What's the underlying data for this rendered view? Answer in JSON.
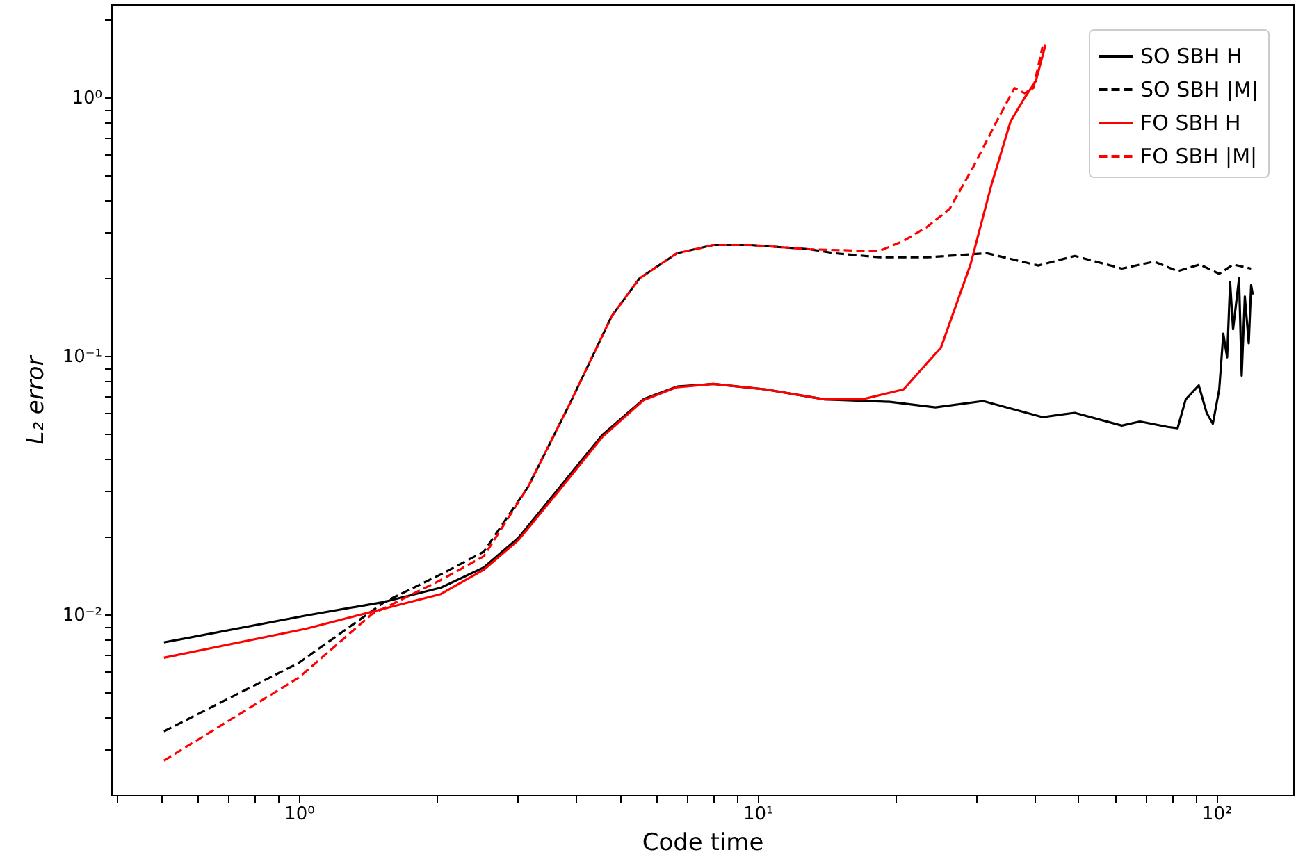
{
  "chart_data": {
    "type": "line",
    "xlabel": "Code time",
    "ylabel": "L₂ error",
    "log": "xy",
    "grid": false,
    "legend": "top right",
    "xlim": [
      0.39,
      147
    ],
    "ylim": [
      0.002,
      2.3
    ],
    "xticks": [
      {
        "value": 0.4,
        "label": null
      },
      {
        "value": 0.5,
        "label": null
      },
      {
        "value": 0.6,
        "label": null
      },
      {
        "value": 0.7,
        "label": null
      },
      {
        "value": 0.8,
        "label": null
      },
      {
        "value": 0.9,
        "label": null
      },
      {
        "value": 1,
        "label": "10⁰"
      },
      {
        "value": 2,
        "label": null
      },
      {
        "value": 3,
        "label": null
      },
      {
        "value": 4,
        "label": null
      },
      {
        "value": 5,
        "label": null
      },
      {
        "value": 6,
        "label": null
      },
      {
        "value": 7,
        "label": null
      },
      {
        "value": 8,
        "label": null
      },
      {
        "value": 9,
        "label": null
      },
      {
        "value": 10,
        "label": "10¹"
      },
      {
        "value": 20,
        "label": null
      },
      {
        "value": 30,
        "label": null
      },
      {
        "value": 40,
        "label": null
      },
      {
        "value": 50,
        "label": null
      },
      {
        "value": 60,
        "label": null
      },
      {
        "value": 70,
        "label": null
      },
      {
        "value": 80,
        "label": null
      },
      {
        "value": 90,
        "label": null
      },
      {
        "value": 100,
        "label": "10²"
      }
    ],
    "yticks": [
      {
        "value": 0.003,
        "label": null
      },
      {
        "value": 0.004,
        "label": null
      },
      {
        "value": 0.005,
        "label": null
      },
      {
        "value": 0.006,
        "label": null
      },
      {
        "value": 0.007,
        "label": null
      },
      {
        "value": 0.008,
        "label": null
      },
      {
        "value": 0.009,
        "label": null
      },
      {
        "value": 0.01,
        "label": "10⁻²"
      },
      {
        "value": 0.02,
        "label": null
      },
      {
        "value": 0.03,
        "label": null
      },
      {
        "value": 0.04,
        "label": null
      },
      {
        "value": 0.05,
        "label": null
      },
      {
        "value": 0.06,
        "label": null
      },
      {
        "value": 0.07,
        "label": null
      },
      {
        "value": 0.08,
        "label": null
      },
      {
        "value": 0.09,
        "label": null
      },
      {
        "value": 0.1,
        "label": "10⁻¹"
      },
      {
        "value": 0.2,
        "label": null
      },
      {
        "value": 0.3,
        "label": null
      },
      {
        "value": 0.4,
        "label": null
      },
      {
        "value": 0.5,
        "label": null
      },
      {
        "value": 0.6,
        "label": null
      },
      {
        "value": 0.7,
        "label": null
      },
      {
        "value": 0.8,
        "label": null
      },
      {
        "value": 0.9,
        "label": null
      },
      {
        "value": 1,
        "label": "10⁰"
      },
      {
        "value": 2,
        "label": null
      }
    ],
    "series": [
      {
        "name": "SO SBH H",
        "color": "#000000",
        "line_style": "solid",
        "x": [
          0.508,
          1.035,
          1.54,
          2.04,
          2.53,
          3.01,
          3.71,
          4.58,
          5.64,
          6.67,
          8.0,
          10.4,
          14.0,
          19.4,
          24.4,
          31.0,
          41.8,
          49.1,
          62.2,
          68.1,
          78.3,
          82.3,
          85.7,
          91.5,
          95.2,
          98.2,
          101.4,
          103.5,
          105.5,
          107.1,
          108.7,
          112,
          113.5,
          115.3,
          117.6,
          119,
          120
        ],
        "values": [
          0.0078,
          0.0099,
          0.0112,
          0.0127,
          0.0152,
          0.0198,
          0.0312,
          0.0494,
          0.0681,
          0.0762,
          0.078,
          0.0743,
          0.068,
          0.0665,
          0.0633,
          0.067,
          0.058,
          0.0603,
          0.0538,
          0.0558,
          0.0532,
          0.0526,
          0.068,
          0.077,
          0.0603,
          0.0547,
          0.0743,
          0.122,
          0.0988,
          0.193,
          0.127,
          0.2,
          0.084,
          0.17,
          0.112,
          0.188,
          0.173
        ]
      },
      {
        "name": "SO SBH |M|",
        "color": "#000000",
        "line_style": "dashed",
        "x": [
          0.508,
          1.0,
          1.54,
          2.04,
          2.53,
          3.16,
          3.9,
          4.81,
          5.53,
          6.67,
          8.0,
          9.66,
          13.0,
          14.7,
          18.5,
          23.4,
          31.6,
          40.9,
          49.1,
          62.2,
          73.1,
          82.3,
          92,
          101.4,
          108.7,
          119
        ],
        "values": [
          0.00353,
          0.0065,
          0.0112,
          0.0143,
          0.0175,
          0.0312,
          0.0657,
          0.143,
          0.2,
          0.25,
          0.269,
          0.269,
          0.259,
          0.25,
          0.241,
          0.241,
          0.25,
          0.224,
          0.244,
          0.218,
          0.232,
          0.213,
          0.226,
          0.208,
          0.226,
          0.218
        ]
      },
      {
        "name": "FO SBH H",
        "color": "#ff0000",
        "line_style": "solid",
        "x": [
          0.508,
          1.035,
          2.04,
          2.53,
          3.01,
          3.71,
          4.58,
          5.64,
          6.67,
          8.0,
          10.4,
          14.0,
          16.9,
          20.8,
          25.1,
          29.1,
          32.3,
          35.6,
          38.2,
          40.4,
          42.4
        ],
        "values": [
          0.0068,
          0.0088,
          0.012,
          0.0149,
          0.0194,
          0.0305,
          0.0485,
          0.0675,
          0.0758,
          0.078,
          0.0743,
          0.068,
          0.068,
          0.0743,
          0.108,
          0.226,
          0.458,
          0.811,
          1.0,
          1.16,
          1.6
        ]
      },
      {
        "name": "FO SBH |M|",
        "color": "#ff0000",
        "line_style": "dashed",
        "x": [
          0.508,
          1.0,
          1.44,
          2.04,
          2.53,
          3.16,
          3.9,
          4.81,
          5.53,
          6.67,
          8.0,
          9.66,
          13.0,
          16.5,
          18.5,
          20.8,
          23.4,
          26.2,
          29.5,
          33.2,
          36.3,
          38.2,
          39.9,
          41.8
        ],
        "values": [
          0.00272,
          0.0057,
          0.01,
          0.0136,
          0.0168,
          0.0312,
          0.0657,
          0.143,
          0.2,
          0.25,
          0.269,
          0.269,
          0.259,
          0.256,
          0.256,
          0.279,
          0.316,
          0.371,
          0.539,
          0.811,
          1.09,
          1.04,
          1.09,
          1.58
        ]
      }
    ]
  }
}
